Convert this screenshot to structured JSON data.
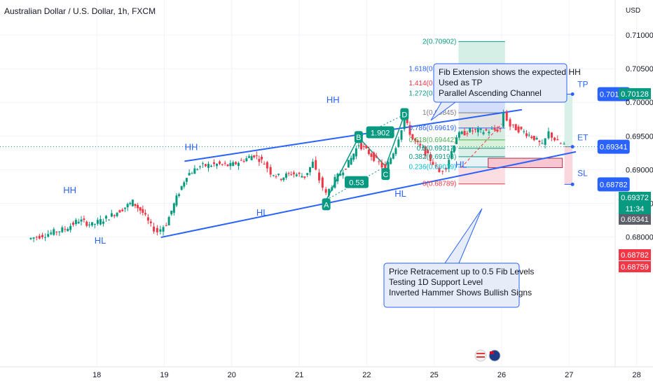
{
  "chart_data": {
    "type": "candlestick",
    "title": "Australian Dollar / U.S. Dollar, 1h, FXCM",
    "currency": "USD",
    "y_ticks": [
      "0.71000",
      "0.70500",
      "0.70000",
      "0.69500",
      "0.69000",
      "0.68500",
      "0.68000"
    ],
    "ylim": [
      0.6765,
      0.7135
    ],
    "x_ticks": [
      {
        "label": "18",
        "day": 18
      },
      {
        "label": "19",
        "day": 19
      },
      {
        "label": "20",
        "day": 20
      },
      {
        "label": "21",
        "day": 21
      },
      {
        "label": "22",
        "day": 22
      },
      {
        "label": "25",
        "day": 23
      },
      {
        "label": "26",
        "day": 24
      },
      {
        "label": "27",
        "day": 25
      },
      {
        "label": "28",
        "day": 26
      }
    ],
    "up_color": "#089981",
    "down_color": "#f23645",
    "price_path": [
      [
        17.0,
        0.6797
      ],
      [
        17.3,
        0.6805
      ],
      [
        17.55,
        0.6812
      ],
      [
        17.75,
        0.6825
      ],
      [
        17.95,
        0.6818
      ],
      [
        18.2,
        0.683
      ],
      [
        18.4,
        0.6842
      ],
      [
        18.55,
        0.6852
      ],
      [
        18.7,
        0.6836
      ],
      [
        18.82,
        0.6816
      ],
      [
        18.92,
        0.6808
      ],
      [
        19.05,
        0.682
      ],
      [
        19.2,
        0.6858
      ],
      [
        19.35,
        0.6892
      ],
      [
        19.55,
        0.6905
      ],
      [
        19.8,
        0.6908
      ],
      [
        20.0,
        0.6906
      ],
      [
        20.2,
        0.6915
      ],
      [
        20.35,
        0.6922
      ],
      [
        20.5,
        0.691
      ],
      [
        20.6,
        0.6896
      ],
      [
        20.75,
        0.6888
      ],
      [
        20.9,
        0.6895
      ],
      [
        21.1,
        0.689
      ],
      [
        21.22,
        0.691
      ],
      [
        21.32,
        0.6885
      ],
      [
        21.42,
        0.6863
      ],
      [
        21.55,
        0.6885
      ],
      [
        21.75,
        0.691
      ],
      [
        21.9,
        0.6938
      ],
      [
        22.05,
        0.6925
      ],
      [
        22.2,
        0.691
      ],
      [
        22.3,
        0.69
      ],
      [
        22.45,
        0.6935
      ],
      [
        22.58,
        0.6975
      ],
      [
        22.7,
        0.6945
      ],
      [
        22.85,
        0.693
      ],
      [
        23.0,
        0.691
      ],
      [
        23.1,
        0.6896
      ],
      [
        23.2,
        0.6905
      ],
      [
        23.35,
        0.695
      ],
      [
        23.55,
        0.6958
      ],
      [
        23.75,
        0.6957
      ],
      [
        24.0,
        0.696
      ],
      [
        24.05,
        0.6985
      ],
      [
        24.15,
        0.6965
      ],
      [
        24.35,
        0.6956
      ],
      [
        24.5,
        0.6947
      ],
      [
        24.62,
        0.6935
      ],
      [
        24.72,
        0.6955
      ],
      [
        24.85,
        0.694
      ],
      [
        24.95,
        0.6937
      ]
    ],
    "horizontal_line": 0.69341,
    "trendlines": [
      {
        "from": [
          19.3,
          0.69125
        ],
        "to": [
          24.3,
          0.6989
        ]
      },
      {
        "from": [
          18.95,
          0.67995
        ],
        "to": [
          25.1,
          0.69265
        ]
      }
    ],
    "pattern_lines": [
      {
        "from": [
          21.4,
          0.6855
        ],
        "to": [
          21.88,
          0.6948
        ]
      },
      {
        "from": [
          21.88,
          0.6948
        ],
        "to": [
          22.28,
          0.6905
        ]
      },
      {
        "from": [
          22.28,
          0.6905
        ],
        "to": [
          22.56,
          0.6982
        ]
      },
      {
        "from": [
          21.4,
          0.6855
        ],
        "to": [
          22.28,
          0.6905
        ]
      },
      {
        "from": [
          21.88,
          0.6948
        ],
        "to": [
          22.56,
          0.6982
        ]
      }
    ],
    "pattern_points": [
      {
        "label": "A",
        "x": 21.4,
        "y": 0.6848
      },
      {
        "label": "B",
        "x": 21.88,
        "y": 0.6948
      },
      {
        "label": "C",
        "x": 22.28,
        "y": 0.6893
      },
      {
        "label": "D",
        "x": 22.56,
        "y": 0.6982
      }
    ],
    "pattern_ratios": [
      {
        "label": "1.902",
        "x": 22.2,
        "y": 0.6955
      },
      {
        "label": "0.53",
        "x": 21.85,
        "y": 0.6881
      }
    ],
    "swing_labels": [
      {
        "label": "HH",
        "x": 17.6,
        "y": 0.6865
      },
      {
        "label": "HL",
        "x": 18.05,
        "y": 0.679
      },
      {
        "label": "HH",
        "x": 19.4,
        "y": 0.6929
      },
      {
        "label": "HL",
        "x": 20.45,
        "y": 0.6832
      },
      {
        "label": "HH",
        "x": 21.5,
        "y": 0.6999
      },
      {
        "label": "HL",
        "x": 22.5,
        "y": 0.686
      },
      {
        "label": "HL",
        "x": 23.4,
        "y": 0.6903
      }
    ],
    "fib_extension": {
      "x_start": 23.36,
      "x_end": 24.05,
      "levels": [
        {
          "label": "2(0.70902)",
          "value": 0.70902
        },
        {
          "label": "1.618(0.70498)",
          "value": 0.70498
        },
        {
          "label": "1.414(0.70283)",
          "value": 0.70283
        },
        {
          "label": "1.272(0.70133)",
          "value": 0.70133
        },
        {
          "label": "1(0.69845)",
          "value": 0.69845
        }
      ],
      "bands": [
        {
          "from": 0.70902,
          "to": 0.70498,
          "color": "#d5efe6"
        },
        {
          "from": 0.70498,
          "to": 0.70283,
          "color": "#a9cfd6"
        },
        {
          "from": 0.70283,
          "to": 0.70133,
          "color": "#f2c1c7"
        },
        {
          "from": 0.70133,
          "to": 0.69845,
          "color": "#d2defa"
        }
      ]
    },
    "fib_retracement": {
      "x_start": 23.36,
      "x_end": 24.05,
      "levels": [
        {
          "label": "0.786(0.69619)",
          "value": 0.69619
        },
        {
          "label": "0.618(0.69442)",
          "value": 0.69442
        },
        {
          "label": "0.5(0.69317)",
          "value": 0.69317
        },
        {
          "label": "0.382(0.69193)",
          "value": 0.69193
        },
        {
          "label": "0.236(0.69039)",
          "value": 0.69039
        },
        {
          "label": "0(0.68789)",
          "value": 0.68789
        }
      ],
      "bands": [
        {
          "from": 0.69845,
          "to": 0.69619,
          "color": "#e3e3e3"
        },
        {
          "from": 0.69619,
          "to": 0.69442,
          "color": "#d6ebe2"
        },
        {
          "from": 0.69442,
          "to": 0.69317,
          "color": "#d8f0d8"
        },
        {
          "from": 0.69317,
          "to": 0.69193,
          "color": "#dcefe8"
        },
        {
          "from": 0.69193,
          "to": 0.69039,
          "color": "#e6f2f6"
        },
        {
          "from": 0.69039,
          "to": 0.68789,
          "color": "#fbdde2"
        }
      ]
    },
    "support_zone": {
      "x1": 23.8,
      "x2": 24.9,
      "top": 0.6917,
      "bottom": 0.6903
    },
    "position": {
      "x_start": 24.93,
      "x_end": 25.05,
      "tp": 0.70122,
      "entry": 0.69341,
      "sl": 0.68782,
      "tp_label": "TP",
      "entry_label": "ET",
      "sl_label": "SL",
      "tp_value": "0.70122",
      "entry_value": "0.69341",
      "sl_value": "0.68782"
    },
    "right_axis_tags": [
      {
        "value": 0.70128,
        "text": "0.70128",
        "color": "#089981"
      },
      {
        "value": 0.69372,
        "text": "0.69372",
        "color": "#089981"
      },
      {
        "value": 0.69341,
        "text": "0.69341",
        "color": "#5d606b"
      },
      {
        "value": 0.68782,
        "text": "0.68782",
        "color": "#f23645"
      },
      {
        "value": 0.68759,
        "text": "0.68759",
        "color": "#f23645"
      }
    ],
    "countdown": "11:34",
    "callouts": [
      {
        "lines": [
          "Fib Extension shows the expected HH",
          "Used as TP",
          "Parallel Ascending Channel"
        ]
      },
      {
        "lines": [
          "Price Retracement up to 0.5 Fib Levels",
          "Testing 1D Support Level",
          "Inverted Hammer Shows Bullish Signs"
        ]
      }
    ]
  }
}
